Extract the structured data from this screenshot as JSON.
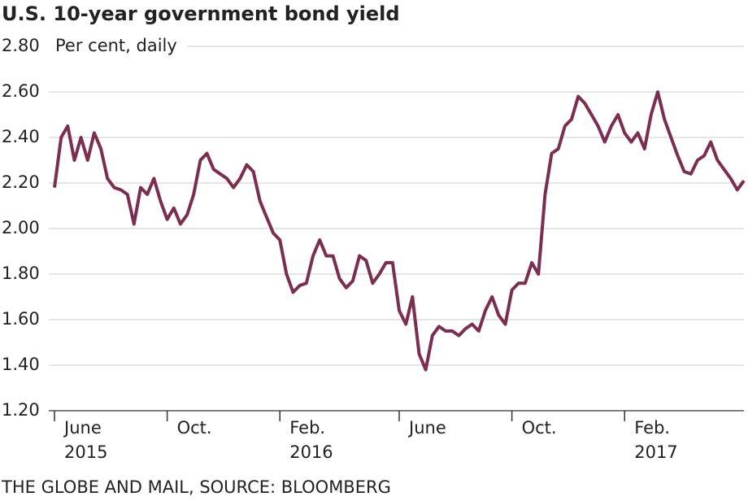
{
  "chart_data": {
    "type": "line",
    "title": "U.S. 10-year government bond yield",
    "y_label": "Per cent, daily",
    "source": "THE GLOBE AND MAIL, SOURCE: BLOOMBERG",
    "categories": [
      null,
      null,
      null,
      null,
      null,
      null,
      null,
      null,
      null,
      null,
      null,
      null,
      null,
      null,
      null,
      null,
      null,
      null,
      null,
      null,
      null,
      null,
      null,
      null,
      null,
      null,
      null,
      null,
      null,
      null,
      null,
      null,
      null,
      null,
      null,
      null,
      null,
      null,
      null,
      null,
      null,
      null,
      null,
      null,
      null,
      null,
      null,
      null,
      null,
      null,
      null,
      null,
      null,
      null,
      null,
      null,
      null,
      null,
      null,
      null,
      null,
      null,
      null,
      null,
      null,
      null,
      null,
      null,
      null,
      null,
      null,
      null,
      null,
      null,
      null,
      null,
      null,
      null,
      null,
      null,
      null,
      null,
      null,
      null,
      null,
      null,
      null,
      null,
      null,
      null,
      null,
      null,
      null,
      null,
      null,
      null,
      null,
      null,
      null,
      null,
      null,
      null,
      null,
      null,
      null
    ],
    "series": [
      {
        "name": "U.S. 10-year yield",
        "color": "#7b2d52",
        "values": [
          2.18,
          2.4,
          2.45,
          2.3,
          2.4,
          2.3,
          2.42,
          2.35,
          2.22,
          2.18,
          2.17,
          2.15,
          2.02,
          2.18,
          2.15,
          2.22,
          2.12,
          2.04,
          2.09,
          2.02,
          2.06,
          2.15,
          2.3,
          2.33,
          2.26,
          2.24,
          2.22,
          2.18,
          2.22,
          2.28,
          2.25,
          2.12,
          2.05,
          1.98,
          1.95,
          1.8,
          1.72,
          1.75,
          1.76,
          1.88,
          1.95,
          1.88,
          1.88,
          1.78,
          1.74,
          1.77,
          1.88,
          1.86,
          1.76,
          1.8,
          1.85,
          1.85,
          1.64,
          1.58,
          1.7,
          1.45,
          1.38,
          1.53,
          1.57,
          1.55,
          1.55,
          1.53,
          1.56,
          1.58,
          1.55,
          1.64,
          1.7,
          1.62,
          1.58,
          1.73,
          1.76,
          1.76,
          1.85,
          1.8,
          2.15,
          2.33,
          2.35,
          2.45,
          2.48,
          2.58,
          2.55,
          2.5,
          2.45,
          2.38,
          2.45,
          2.5,
          2.42,
          2.38,
          2.42,
          2.35,
          2.5,
          2.6,
          2.48,
          2.4,
          2.32,
          2.25,
          2.24,
          2.3,
          2.32,
          2.38,
          2.3,
          2.26,
          2.22,
          2.17,
          2.21
        ]
      }
    ],
    "xticks": [
      {
        "value": 0,
        "label": "June",
        "year": "2015"
      },
      {
        "value": 17,
        "label": "Oct."
      },
      {
        "value": 34,
        "label": "Feb.",
        "year": "2016"
      },
      {
        "value": 52,
        "label": "June"
      },
      {
        "value": 69,
        "label": "Oct."
      },
      {
        "value": 86,
        "label": "Feb.",
        "year": "2017"
      }
    ],
    "ylim": [
      1.2,
      2.8
    ],
    "yticks": [
      {
        "value": 1.2,
        "label": "1.20"
      },
      {
        "value": 1.4,
        "label": "1.40"
      },
      {
        "value": 1.6,
        "label": "1.60"
      },
      {
        "value": 1.8,
        "label": "1.80"
      },
      {
        "value": 2.0,
        "label": "2.00"
      },
      {
        "value": 2.2,
        "label": "2.20"
      },
      {
        "value": 2.4,
        "label": "2.40"
      },
      {
        "value": 2.6,
        "label": "2.60"
      },
      {
        "value": 2.8,
        "label": "2.80"
      }
    ],
    "grid": true
  }
}
